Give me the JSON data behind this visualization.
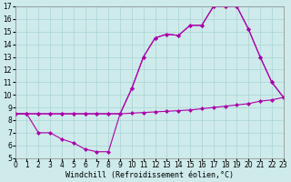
{
  "xlabel": "Windchill (Refroidissement éolien,°C)",
  "bg_color": "#ceeaea",
  "line_color": "#aa00aa",
  "grid_color": "#aad4d4",
  "xlim": [
    0,
    23
  ],
  "ylim": [
    5,
    17
  ],
  "xticks": [
    0,
    1,
    2,
    3,
    4,
    5,
    6,
    7,
    8,
    9,
    10,
    11,
    12,
    13,
    14,
    15,
    16,
    17,
    18,
    19,
    20,
    21,
    22,
    23
  ],
  "yticks": [
    5,
    6,
    7,
    8,
    9,
    10,
    11,
    12,
    13,
    14,
    15,
    16,
    17
  ],
  "lineA_x": [
    0,
    1,
    2,
    3,
    4,
    5,
    6,
    7,
    8,
    9,
    10,
    11,
    12,
    13,
    14,
    15,
    16,
    17,
    18,
    19,
    20,
    21,
    22,
    23
  ],
  "lineA_y": [
    8.5,
    8.5,
    8.5,
    8.5,
    8.5,
    8.5,
    8.5,
    8.5,
    8.5,
    8.5,
    8.55,
    8.6,
    8.65,
    8.7,
    8.75,
    8.8,
    8.9,
    9.0,
    9.1,
    9.2,
    9.3,
    9.5,
    9.6,
    9.8
  ],
  "lineB_x": [
    0,
    1,
    2,
    3,
    4,
    5,
    6,
    7,
    8,
    9,
    10,
    11,
    12,
    13,
    14,
    15,
    16,
    17,
    18,
    19,
    20,
    21,
    22,
    23
  ],
  "lineB_y": [
    8.5,
    8.5,
    7.0,
    7.0,
    6.5,
    6.2,
    5.7,
    5.5,
    5.5,
    8.5,
    10.5,
    13.0,
    14.5,
    14.8,
    14.7,
    15.5,
    15.5,
    17.0,
    17.0,
    17.0,
    15.2,
    13.0,
    11.0,
    9.8
  ],
  "lineC_x": [
    0,
    1,
    2,
    3,
    4,
    5,
    6,
    7,
    8,
    9,
    10,
    11,
    12,
    13,
    14,
    15,
    16,
    17,
    18,
    19,
    20,
    21,
    22,
    23
  ],
  "lineC_y": [
    8.5,
    8.5,
    8.5,
    8.5,
    8.5,
    8.5,
    8.5,
    8.5,
    8.5,
    8.5,
    10.5,
    13.0,
    14.5,
    14.8,
    14.7,
    15.5,
    15.5,
    17.0,
    17.0,
    17.0,
    15.2,
    13.0,
    11.0,
    9.8
  ]
}
